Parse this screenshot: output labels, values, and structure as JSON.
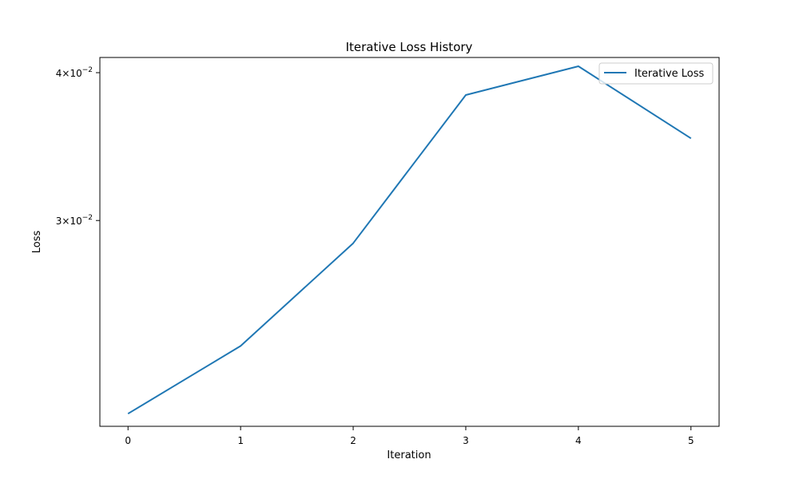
{
  "chart_data": {
    "type": "line",
    "title": "Iterative Loss History",
    "xlabel": "Iteration",
    "ylabel": "Loss",
    "yscale": "log",
    "x": [
      0,
      1,
      2,
      3,
      4,
      5
    ],
    "xticks": [
      "0",
      "1",
      "2",
      "3",
      "4",
      "5"
    ],
    "xlim": [
      -0.25,
      5.25
    ],
    "ylim": [
      0.0201,
      0.0412
    ],
    "yticks": [
      {
        "value": 0.03,
        "mantissa": "3",
        "base": "10",
        "exponent": "−2"
      },
      {
        "value": 0.04,
        "mantissa": "4",
        "base": "10",
        "exponent": "−2"
      }
    ],
    "series": [
      {
        "name": "Iterative Loss",
        "color": "#1f77b4",
        "values": [
          0.0206,
          0.0235,
          0.0287,
          0.0383,
          0.0405,
          0.0352
        ]
      }
    ],
    "legend_position": "top-right",
    "grid": false
  }
}
